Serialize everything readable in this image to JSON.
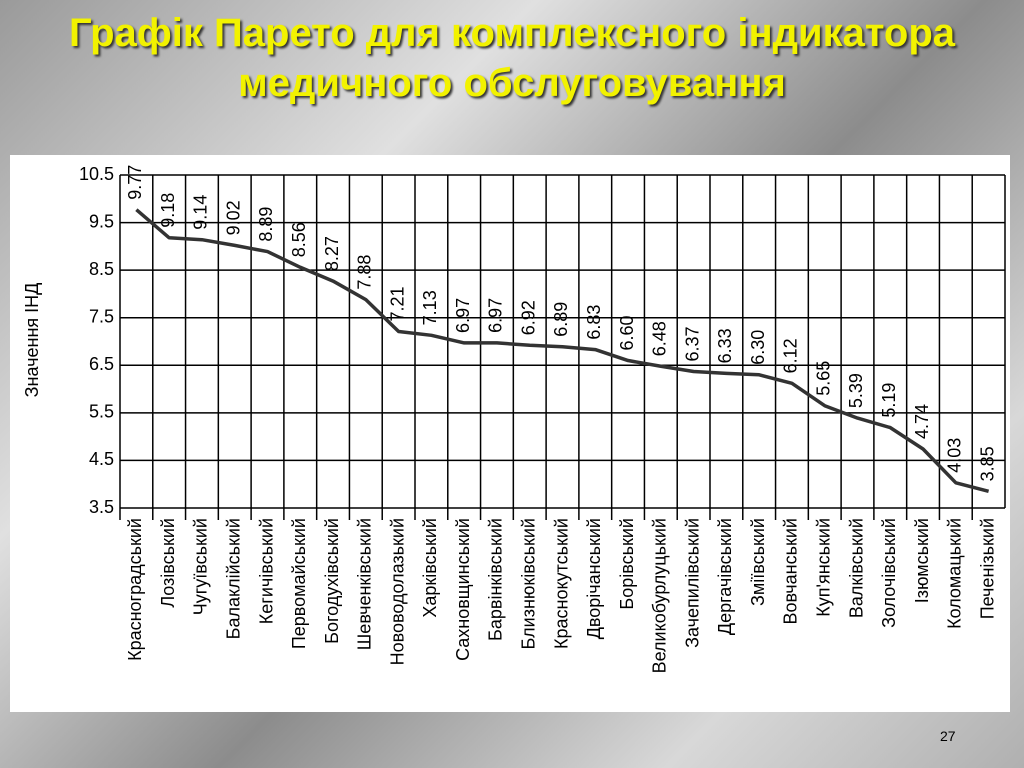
{
  "chart_data": {
    "type": "line",
    "title": "Графік Парето для комплексного індикатора медичного обслуговування",
    "y_label": "Значення ІНД",
    "categories": [
      "Красноградський",
      "Лозівський",
      "Чугуївський",
      "Балаклійський",
      "Кегичівський",
      "Первомайський",
      "Богодухівський",
      "Шевченківський",
      "Нововодолазький",
      "Харківський",
      "Сахновщинський",
      "Барвінківський",
      "Близнюківський",
      "Краснокутський",
      "Дворічанський",
      "Борівський",
      "Великобурлуцький",
      "Зачепилівський",
      "Дергачівський",
      "Зміївський",
      "Вовчанський",
      "Куп'янський",
      "Валківський",
      "Золочівський",
      "Ізюмський",
      "Коломацький",
      "Печенізький"
    ],
    "series": [
      {
        "color": "#333333",
        "values": [
          9.77,
          9.18,
          9.14,
          9.02,
          8.89,
          8.56,
          8.27,
          7.88,
          7.21,
          7.13,
          6.97,
          6.97,
          6.92,
          6.89,
          6.83,
          6.6,
          6.48,
          6.37,
          6.33,
          6.3,
          6.12,
          5.65,
          5.39,
          5.19,
          4.74,
          4.03,
          3.85
        ],
        "value_labels": [
          "9.77",
          "9.18",
          "9.14",
          "9.02",
          "8.89",
          "8.56",
          "8.27",
          "7.88",
          "7.21",
          "7.13",
          "6.97",
          "6.97",
          "6.92",
          "6.89",
          "6.83",
          "6.60",
          "6.48",
          "6.37",
          "6.33",
          "6.30",
          "6.12",
          "5.65",
          "5.39",
          "5.19",
          "4.74",
          "4.03",
          "3.85"
        ]
      }
    ],
    "ylim": [
      3.5,
      10.5
    ],
    "yticks": [
      3.5,
      4.5,
      5.5,
      6.5,
      7.5,
      8.5,
      9.5,
      10.5
    ],
    "grid": true
  },
  "page_number": "27"
}
